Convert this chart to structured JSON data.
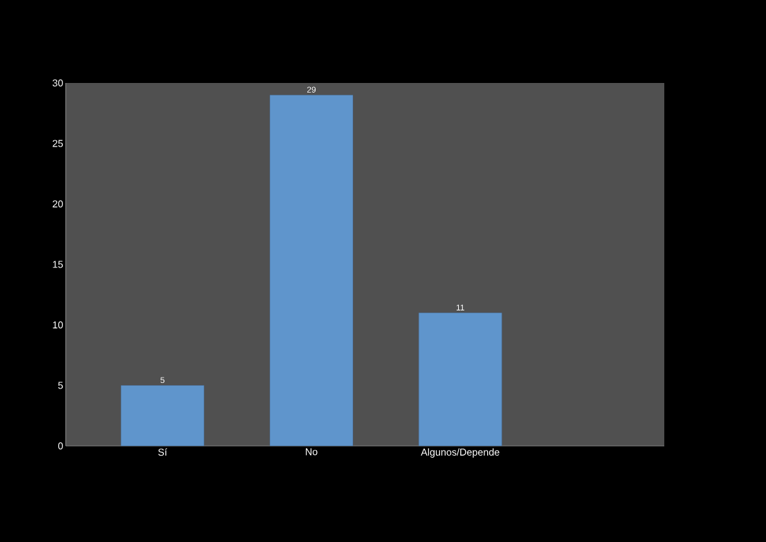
{
  "chart_data": {
    "type": "bar",
    "categories": [
      "Sí",
      "No",
      "Algunos/Depende"
    ],
    "values": [
      5,
      29,
      11
    ],
    "color": "#5f95cc",
    "ylim": [
      0,
      30
    ],
    "yticks": [
      0,
      5,
      10,
      15,
      20,
      25,
      30
    ],
    "data_labels": true
  }
}
